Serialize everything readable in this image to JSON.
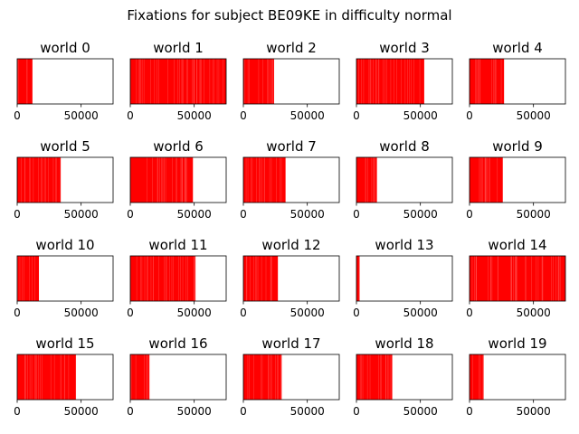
{
  "chart_data": {
    "type": "bar",
    "title": "Fixations for subject BE09KE in difficulty normal",
    "layout": {
      "rows": 4,
      "cols": 5
    },
    "shared_axes": {
      "xlim": [
        0,
        75000
      ],
      "xticks": [
        0,
        50000
      ],
      "xtick_labels": [
        "0",
        "50000"
      ],
      "yticks": []
    },
    "bar_color": "#ff0000",
    "panels": [
      {
        "title": "world 0",
        "fixation_end": 12000
      },
      {
        "title": "world 1",
        "fixation_end": 75000
      },
      {
        "title": "world 2",
        "fixation_end": 24000
      },
      {
        "title": "world 3",
        "fixation_end": 53000
      },
      {
        "title": "world 4",
        "fixation_end": 27000
      },
      {
        "title": "world 5",
        "fixation_end": 34000
      },
      {
        "title": "world 6",
        "fixation_end": 49000
      },
      {
        "title": "world 7",
        "fixation_end": 33000
      },
      {
        "title": "world 8",
        "fixation_end": 16000
      },
      {
        "title": "world 9",
        "fixation_end": 26000
      },
      {
        "title": "world 10",
        "fixation_end": 17000
      },
      {
        "title": "world 11",
        "fixation_end": 51000
      },
      {
        "title": "world 12",
        "fixation_end": 27000
      },
      {
        "title": "world 13",
        "fixation_end": 2500
      },
      {
        "title": "world 14",
        "fixation_end": 75000
      },
      {
        "title": "world 15",
        "fixation_end": 46000
      },
      {
        "title": "world 16",
        "fixation_end": 15000
      },
      {
        "title": "world 17",
        "fixation_end": 30000
      },
      {
        "title": "world 18",
        "fixation_end": 28000
      },
      {
        "title": "world 19",
        "fixation_end": 11000
      }
    ]
  }
}
